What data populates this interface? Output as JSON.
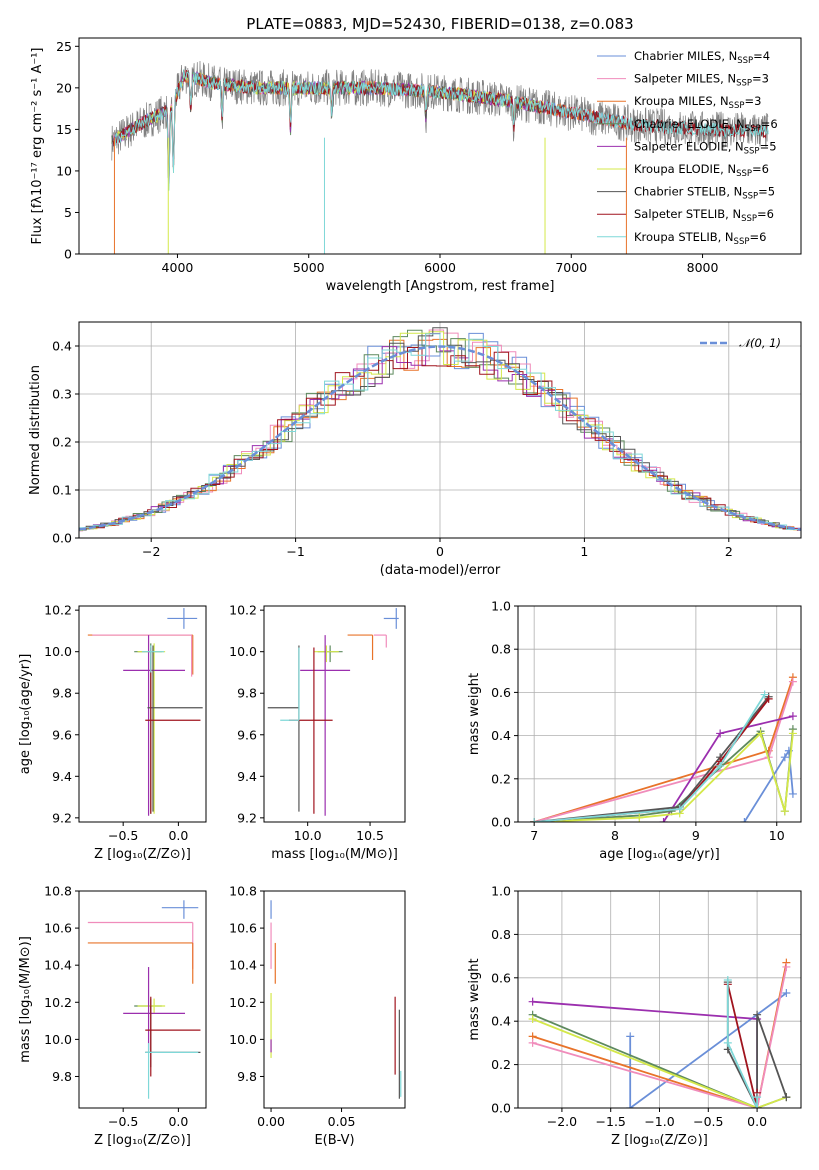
{
  "colors": {
    "Chabrier MILES": "#6a8fd8",
    "Salpeter MILES": "#f08cbb",
    "Kroupa MILES": "#e8732a",
    "Chabrier ELODIE": "#5e8a5e",
    "Salpeter ELODIE": "#9b2fae",
    "Kroupa ELODIE": "#d4e84a",
    "Chabrier STELIB": "#555555",
    "Salpeter STELIB": "#a0141e",
    "Kroupa STELIB": "#7fd8d8",
    "gray": "#808080"
  },
  "chart_data": [
    {
      "id": "spectrum",
      "type": "line",
      "title": "PLATE=0883, MJD=52430, FIBERID=0138, z=0.083",
      "xlabel": "wavelength [Angstrom, rest frame]",
      "ylabel": "Flux [fλ10⁻¹⁷ erg cm⁻² s⁻¹ A⁻¹]",
      "xlim": [
        3250,
        8750
      ],
      "ylim": [
        0,
        26
      ],
      "xticks": [
        4000,
        5000,
        6000,
        7000,
        8000
      ],
      "yticks": [
        0,
        5,
        10,
        15,
        20,
        25
      ],
      "legend_position": "top-right",
      "legend": [
        {
          "name": "Chabrier MILES",
          "label": "Chabrier MILES, N",
          "sub": "SSP",
          "post": "=4"
        },
        {
          "name": "Salpeter MILES",
          "label": "Salpeter MILES, N",
          "sub": "SSP",
          "post": "=3"
        },
        {
          "name": "Kroupa MILES",
          "label": "Kroupa MILES, N",
          "sub": "SSP",
          "post": "=3"
        },
        {
          "name": "Chabrier ELODIE",
          "label": "Chabrier ELODIE, N",
          "sub": "SSP",
          "post": "=6"
        },
        {
          "name": "Salpeter ELODIE",
          "label": "Salpeter ELODIE, N",
          "sub": "SSP",
          "post": "=5"
        },
        {
          "name": "Kroupa ELODIE",
          "label": "Kroupa ELODIE, N",
          "sub": "SSP",
          "post": "=6"
        },
        {
          "name": "Chabrier STELIB",
          "label": "Chabrier STELIB, N",
          "sub": "SSP",
          "post": "=5"
        },
        {
          "name": "Salpeter STELIB",
          "label": "Salpeter STELIB, N",
          "sub": "SSP",
          "post": "=6"
        },
        {
          "name": "Kroupa STELIB",
          "label": "Kroupa STELIB, N",
          "sub": "SSP",
          "post": "=6"
        }
      ],
      "continuum": [
        [
          3500,
          13.5
        ],
        [
          3700,
          15.5
        ],
        [
          3950,
          17.5
        ],
        [
          4050,
          21.5
        ],
        [
          4300,
          20.5
        ],
        [
          4600,
          20
        ],
        [
          5000,
          20
        ],
        [
          5500,
          20
        ],
        [
          6000,
          19.5
        ],
        [
          6500,
          18.5
        ],
        [
          7000,
          17
        ],
        [
          7500,
          15.5
        ],
        [
          8000,
          15
        ],
        [
          8500,
          14.8
        ]
      ],
      "absorption": [
        [
          3934,
          9
        ],
        [
          3969,
          8
        ],
        [
          4102,
          4
        ],
        [
          4340,
          4
        ],
        [
          4861,
          5
        ],
        [
          5175,
          3
        ],
        [
          5892,
          3
        ],
        [
          6563,
          3
        ]
      ]
    },
    {
      "id": "residuals",
      "type": "line",
      "xlabel": "(data-model)/error",
      "ylabel": "Normed distribution",
      "xlim": [
        -2.5,
        2.5
      ],
      "ylim": [
        0,
        0.45
      ],
      "xticks": [
        -2,
        -1,
        0,
        1,
        2
      ],
      "yticks": [
        0.0,
        0.1,
        0.2,
        0.3,
        0.4
      ],
      "grid": true,
      "legend_position": "top-right",
      "reference": {
        "label": "𝒩(0, 1)",
        "mean": 0,
        "sigma": 1
      }
    },
    {
      "id": "age_vs_Z",
      "type": "scatter",
      "xlabel": "Z [log₁₀(Z/Z⊙)]",
      "ylabel": "age  [log₁₀(age/yr)]",
      "xlim": [
        -0.9,
        0.25
      ],
      "ylim": [
        9.18,
        10.22
      ],
      "xticks": [
        -0.5,
        0.0
      ],
      "yticks": [
        9.2,
        9.4,
        9.6,
        9.8,
        10.0,
        10.2
      ],
      "points": [
        {
          "model": "Chabrier MILES",
          "x": 0.05,
          "y": 10.16,
          "xerr": [
            0.15,
            0.12
          ],
          "yerr": [
            0.05,
            0.05
          ]
        },
        {
          "model": "Kroupa MILES",
          "x": 0.13,
          "y": 10.08,
          "xerr": [
            0.95,
            0.0
          ],
          "yerr": [
            0.19,
            0.0
          ]
        },
        {
          "model": "Salpeter MILES",
          "x": 0.12,
          "y": 10.08,
          "xerr": [
            0.9,
            0.0
          ],
          "yerr": [
            0.2,
            0.0
          ]
        },
        {
          "model": "Chabrier ELODIE",
          "x": -0.25,
          "y": 10.0,
          "xerr": [
            0.15,
            0.1
          ],
          "yerr": [
            0.78,
            0.04
          ]
        },
        {
          "model": "Kroupa ELODIE",
          "x": -0.22,
          "y": 10.0,
          "xerr": [
            0.15,
            0.1
          ],
          "yerr": [
            0.78,
            0.04
          ]
        },
        {
          "model": "Salpeter ELODIE",
          "x": -0.27,
          "y": 9.91,
          "xerr": [
            0.23,
            0.33
          ],
          "yerr": [
            0.7,
            0.17
          ]
        },
        {
          "model": "Chabrier STELIB",
          "x": -0.23,
          "y": 9.73,
          "xerr": [
            0.05,
            0.45
          ],
          "yerr": [
            0.5,
            0.3
          ]
        },
        {
          "model": "Salpeter STELIB",
          "x": -0.25,
          "y": 9.67,
          "xerr": [
            0.05,
            0.45
          ],
          "yerr": [
            0.45,
            0.35
          ]
        },
        {
          "model": "Kroupa STELIB",
          "x": -0.25,
          "y": 10.0,
          "xerr": [
            0.08,
            0.12
          ],
          "yerr": [
            0.1,
            0.03
          ]
        }
      ]
    },
    {
      "id": "age_vs_mass",
      "type": "scatter",
      "xlabel": "mass [log₁₀(M/M⊙)]",
      "xlim": [
        9.65,
        10.78
      ],
      "ylim": [
        9.18,
        10.22
      ],
      "xticks": [
        10.0,
        10.5
      ],
      "yticks": [
        9.2,
        9.4,
        9.6,
        9.8,
        10.0,
        10.2
      ],
      "points": [
        {
          "model": "Chabrier MILES",
          "x": 10.71,
          "y": 10.16,
          "xerr": [
            0.1,
            0.02
          ],
          "yerr": [
            0.05,
            0.05
          ]
        },
        {
          "model": "Kroupa MILES",
          "x": 10.52,
          "y": 10.08,
          "xerr": [
            0.2,
            0.0
          ],
          "yerr": [
            0.12,
            0.0
          ]
        },
        {
          "model": "Salpeter MILES",
          "x": 10.63,
          "y": 10.08,
          "xerr": [
            0.1,
            0.0
          ],
          "yerr": [
            0.06,
            0.0
          ]
        },
        {
          "model": "Chabrier ELODIE",
          "x": 10.18,
          "y": 10.0,
          "xerr": [
            0.1,
            0.1
          ],
          "yerr": [
            0.05,
            0.03
          ]
        },
        {
          "model": "Kroupa ELODIE",
          "x": 10.15,
          "y": 10.0,
          "xerr": [
            0.1,
            0.1
          ],
          "yerr": [
            0.05,
            0.03
          ]
        },
        {
          "model": "Salpeter ELODIE",
          "x": 10.14,
          "y": 9.91,
          "xerr": [
            0.2,
            0.2
          ],
          "yerr": [
            0.7,
            0.17
          ]
        },
        {
          "model": "Chabrier STELIB",
          "x": 9.93,
          "y": 9.73,
          "xerr": [
            0.25,
            0.0
          ],
          "yerr": [
            0.5,
            0.3
          ]
        },
        {
          "model": "Salpeter STELIB",
          "x": 10.05,
          "y": 9.67,
          "xerr": [
            0.2,
            0.15
          ],
          "yerr": [
            0.45,
            0.35
          ]
        },
        {
          "model": "Kroupa STELIB",
          "x": 9.93,
          "y": 9.67,
          "xerr": [
            0.15,
            0.0
          ],
          "yerr": [
            0.0,
            0.35
          ]
        }
      ]
    },
    {
      "id": "weight_vs_age",
      "type": "line",
      "xlabel": "age  [log₁₀(age/yr)]",
      "ylabel": "mass weight",
      "xlim": [
        6.8,
        10.3
      ],
      "ylim": [
        0,
        1.0
      ],
      "xticks": [
        7,
        8,
        9,
        10
      ],
      "yticks": [
        0.0,
        0.2,
        0.4,
        0.6,
        0.8,
        1.0
      ],
      "grid": true,
      "series": [
        {
          "model": "Kroupa MILES",
          "x": [
            7.0,
            9.9,
            10.2
          ],
          "y": [
            0.0,
            0.33,
            0.67
          ]
        },
        {
          "model": "Salpeter MILES",
          "x": [
            7.0,
            9.9,
            10.2
          ],
          "y": [
            0.0,
            0.3,
            0.65
          ]
        },
        {
          "model": "Chabrier MILES",
          "x": [
            9.6,
            10.1,
            10.15,
            10.2
          ],
          "y": [
            0.0,
            0.3,
            0.33,
            0.13
          ]
        },
        {
          "model": "Salpeter ELODIE",
          "x": [
            8.6,
            9.3,
            10.2
          ],
          "y": [
            0.0,
            0.41,
            0.49
          ]
        },
        {
          "model": "Chabrier ELODIE",
          "x": [
            7.0,
            8.3,
            8.7,
            9.8,
            10.1,
            10.2
          ],
          "y": [
            0.0,
            0.03,
            0.05,
            0.42,
            0.05,
            0.43
          ]
        },
        {
          "model": "Kroupa ELODIE",
          "x": [
            7.0,
            8.3,
            8.8,
            9.8,
            10.1,
            10.2
          ],
          "y": [
            0.0,
            0.02,
            0.04,
            0.41,
            0.05,
            0.41
          ]
        },
        {
          "model": "Chabrier STELIB",
          "x": [
            7.0,
            8.8,
            9.3,
            9.9
          ],
          "y": [
            0.0,
            0.07,
            0.3,
            0.58
          ]
        },
        {
          "model": "Salpeter STELIB",
          "x": [
            7.0,
            8.8,
            9.3,
            9.9
          ],
          "y": [
            0.0,
            0.06,
            0.28,
            0.57
          ]
        },
        {
          "model": "Kroupa STELIB",
          "x": [
            7.0,
            8.8,
            9.3,
            9.85
          ],
          "y": [
            0.0,
            0.06,
            0.26,
            0.59
          ]
        }
      ]
    },
    {
      "id": "mass_vs_Z",
      "type": "scatter",
      "xlabel": "Z [log₁₀(Z/Z⊙)]",
      "ylabel": "mass [log₁₀(M/M⊙)]",
      "xlim": [
        -0.9,
        0.25
      ],
      "ylim": [
        9.63,
        10.8
      ],
      "xticks": [
        -0.5,
        0.0
      ],
      "yticks": [
        9.8,
        10.0,
        10.2,
        10.4,
        10.6,
        10.8
      ],
      "points": [
        {
          "model": "Chabrier MILES",
          "x": 0.05,
          "y": 10.71,
          "xerr": [
            0.2,
            0.13
          ],
          "yerr": [
            0.06,
            0.04
          ]
        },
        {
          "model": "Salpeter MILES",
          "x": 0.13,
          "y": 10.63,
          "xerr": [
            0.95,
            0.0
          ],
          "yerr": [
            0.25,
            0.0
          ]
        },
        {
          "model": "Kroupa MILES",
          "x": 0.13,
          "y": 10.52,
          "xerr": [
            0.95,
            0.0
          ],
          "yerr": [
            0.22,
            0.0
          ]
        },
        {
          "model": "Chabrier ELODIE",
          "x": -0.25,
          "y": 10.18,
          "xerr": [
            0.15,
            0.1
          ],
          "yerr": [
            0.04,
            0.04
          ]
        },
        {
          "model": "Kroupa ELODIE",
          "x": -0.22,
          "y": 10.18,
          "xerr": [
            0.15,
            0.1
          ],
          "yerr": [
            0.04,
            0.04
          ]
        },
        {
          "model": "Salpeter ELODIE",
          "x": -0.27,
          "y": 10.14,
          "xerr": [
            0.23,
            0.33
          ],
          "yerr": [
            0.2,
            0.25
          ]
        },
        {
          "model": "Chabrier STELIB",
          "x": -0.25,
          "y": 9.93,
          "xerr": [
            0.05,
            0.45
          ],
          "yerr": [
            0.08,
            0.25
          ]
        },
        {
          "model": "Salpeter STELIB",
          "x": -0.25,
          "y": 10.05,
          "xerr": [
            0.05,
            0.45
          ],
          "yerr": [
            0.25,
            0.18
          ]
        },
        {
          "model": "Kroupa STELIB",
          "x": -0.27,
          "y": 9.93,
          "xerr": [
            0.03,
            0.45
          ],
          "yerr": [
            0.25,
            0.05
          ]
        }
      ]
    },
    {
      "id": "mass_vs_EBV",
      "type": "scatter",
      "xlabel": "E(B-V)",
      "xlim": [
        -0.005,
        0.095
      ],
      "ylim": [
        9.63,
        10.8
      ],
      "xticks": [
        0.0,
        0.05
      ],
      "yticks": [
        9.8,
        10.0,
        10.2,
        10.4,
        10.6,
        10.8
      ],
      "points": [
        {
          "model": "Chabrier MILES",
          "x": 0.0,
          "y": 10.71,
          "yerr": [
            0.06,
            0.04
          ]
        },
        {
          "model": "Salpeter MILES",
          "x": 0.0,
          "y": 10.63,
          "yerr": [
            0.25,
            0.0
          ]
        },
        {
          "model": "Kroupa MILES",
          "x": 0.003,
          "y": 10.42,
          "yerr": [
            0.12,
            0.1
          ]
        },
        {
          "model": "Kroupa ELODIE",
          "x": 0.0,
          "y": 10.15,
          "yerr": [
            0.25,
            0.1
          ]
        },
        {
          "model": "Salpeter ELODIE",
          "x": 0.0,
          "y": 10.0,
          "yerr": [
            0.07,
            0.0
          ]
        },
        {
          "model": "Salpeter STELIB",
          "x": 0.088,
          "y": 10.05,
          "yerr": [
            0.24,
            0.18
          ]
        },
        {
          "model": "Chabrier STELIB",
          "x": 0.091,
          "y": 9.93,
          "yerr": [
            0.25,
            0.23
          ]
        },
        {
          "model": "Kroupa STELIB",
          "x": 0.092,
          "y": 9.78,
          "yerr": [
            0.09,
            0.05
          ]
        }
      ]
    },
    {
      "id": "weight_vs_Z",
      "type": "line",
      "xlabel": "Z [log₁₀(Z/Z⊙)]",
      "ylabel": "mass weight",
      "xlim": [
        -2.45,
        0.45
      ],
      "ylim": [
        0,
        1.0
      ],
      "xticks": [
        -2.0,
        -1.5,
        -1.0,
        -0.5,
        0.0
      ],
      "yticks": [
        0.0,
        0.2,
        0.4,
        0.6,
        0.8,
        1.0
      ],
      "grid": true,
      "series": [
        {
          "model": "Chabrier MILES",
          "x": [
            -1.3,
            -1.3,
            0.3
          ],
          "y": [
            0.33,
            0.0,
            0.53
          ]
        },
        {
          "model": "Kroupa MILES",
          "x": [
            -2.3,
            0.0,
            0.3
          ],
          "y": [
            0.33,
            0.0,
            0.67
          ]
        },
        {
          "model": "Salpeter MILES",
          "x": [
            -2.3,
            0.0,
            0.3
          ],
          "y": [
            0.3,
            0.0,
            0.65
          ]
        },
        {
          "model": "Salpeter ELODIE",
          "x": [
            -2.3,
            0.0,
            0.0
          ],
          "y": [
            0.49,
            0.41,
            0.0
          ]
        },
        {
          "model": "Chabrier ELODIE",
          "x": [
            -2.3,
            0.0,
            0.3
          ],
          "y": [
            0.43,
            0.0,
            0.05
          ]
        },
        {
          "model": "Kroupa ELODIE",
          "x": [
            -2.3,
            0.0,
            0.3
          ],
          "y": [
            0.41,
            0.0,
            0.05
          ]
        },
        {
          "model": "Chabrier STELIB",
          "x": [
            -0.3,
            -0.3,
            0.0,
            0.0,
            0.3
          ],
          "y": [
            0.58,
            0.27,
            0.0,
            0.43,
            0.05
          ]
        },
        {
          "model": "Salpeter STELIB",
          "x": [
            -0.3,
            0.0,
            0.0
          ],
          "y": [
            0.57,
            0.0,
            0.07
          ]
        },
        {
          "model": "Kroupa STELIB",
          "x": [
            -0.3,
            -0.3,
            0.0,
            0.0
          ],
          "y": [
            0.59,
            0.3,
            0.0,
            0.05
          ]
        }
      ]
    }
  ]
}
